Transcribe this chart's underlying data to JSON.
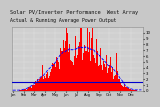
{
  "title1": "Solar PV/Inverter Performance  West Array",
  "title2": "Actual & Running Average Power Output",
  "title_fontsize": 3.8,
  "bg_color": "#c8c8c8",
  "plot_bg_color": "#d0d0d0",
  "bar_color": "#ff0000",
  "avg_line_color": "#0000ff",
  "ref_line_color": "#0000cc",
  "ref_line_y": 1.5,
  "n_points": 365,
  "ylim": [
    0,
    11
  ],
  "yticks": [
    0,
    1,
    2,
    3,
    4,
    5,
    6,
    7,
    8,
    9,
    10
  ],
  "ytick_labels": [
    "0",
    "1",
    "2",
    "3",
    "4",
    "5",
    "6",
    "7",
    "8",
    "9",
    "10"
  ],
  "grid_color": "#ffffff",
  "month_ticks": [
    0,
    31,
    59,
    90,
    120,
    151,
    181,
    212,
    243,
    273,
    304,
    334
  ],
  "month_labels": [
    "Jan",
    "Feb",
    "Mar",
    "Apr",
    "May",
    "Jun",
    "Jul",
    "Aug",
    "Sep",
    "Oct",
    "Nov",
    "Dec"
  ],
  "legend_items": [
    "-- Actual kW",
    "-- Running Avg kW"
  ]
}
